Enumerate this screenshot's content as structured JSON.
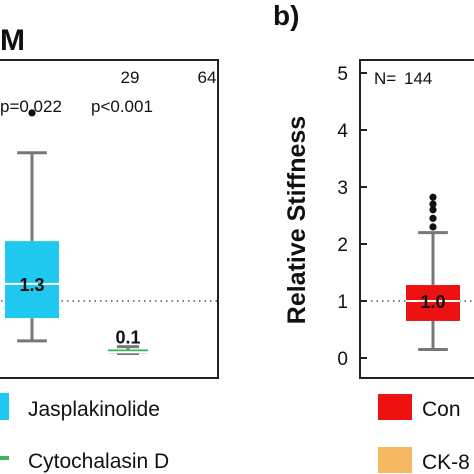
{
  "panel_a": {
    "label_fragment": "M",
    "counts": [
      "64",
      "29"
    ],
    "pvalues": [
      "p=0.022",
      "p<0.001"
    ],
    "legend": [
      {
        "label": "Jasplakinolide",
        "color": "#1ec8ee"
      },
      {
        "label": "Cytochalasin D",
        "color": "#3cb460"
      }
    ]
  },
  "panel_b": {
    "label": "b)",
    "n_label": "N=",
    "n_value": "144",
    "legend": [
      {
        "label": "Con",
        "color": "#ee1111"
      },
      {
        "label": "CK-8",
        "color": "#f5b860"
      }
    ]
  },
  "chart_data": [
    {
      "type": "box",
      "title": "",
      "ylabel": "",
      "ylim": [
        -0.25,
        5.5
      ],
      "reference_line": 1.0,
      "grid": false,
      "series": [
        {
          "name": "Jasplakinolide",
          "n": 64,
          "p": "p=0.022",
          "median": 1.3,
          "q1": 0.7,
          "q3": 2.05,
          "whisker_low": 0.3,
          "whisker_high": 3.6,
          "outliers": [
            4.3
          ],
          "color": "#1ec8ee",
          "median_label": "1.3"
        },
        {
          "name": "Cytochalasin D",
          "n": 29,
          "p": "p<0.001",
          "median": 0.1,
          "q1": 0.08,
          "q3": 0.15,
          "whisker_low": 0.08,
          "whisker_high": 0.2,
          "outliers": [],
          "color": "#3cb460",
          "median_label": "0.1"
        }
      ]
    },
    {
      "type": "box",
      "title": "",
      "ylabel": "Relative Stiffness",
      "ylim": [
        -0.25,
        5.5
      ],
      "yticks": [
        0,
        1,
        2,
        3,
        4,
        5
      ],
      "reference_line": 1.0,
      "grid": false,
      "series": [
        {
          "name": "Con",
          "n": 144,
          "median": 1.0,
          "q1": 0.65,
          "q3": 1.28,
          "whisker_low": 0.15,
          "whisker_high": 2.2,
          "outliers": [
            2.3,
            2.45,
            2.6,
            2.7,
            2.82
          ],
          "color": "#ee1111",
          "median_label": "1.0"
        }
      ]
    }
  ]
}
